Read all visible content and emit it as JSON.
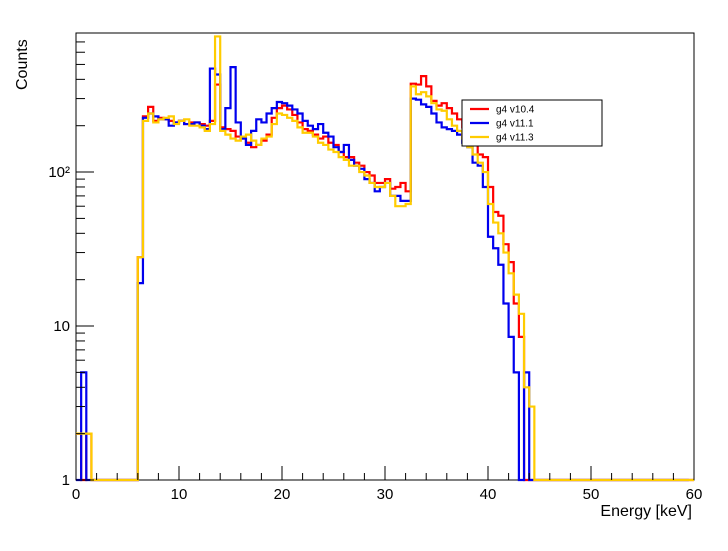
{
  "chart_data": {
    "type": "line",
    "style": "step-histogram",
    "xlabel": "Energy [keV]",
    "ylabel": "Counts",
    "xlim": [
      0,
      60
    ],
    "ylim": [
      1,
      800
    ],
    "yscale": "log",
    "grid": false,
    "legend_position": "top-right",
    "x_tick_labels": [
      "0",
      "10",
      "20",
      "30",
      "40",
      "50",
      "60"
    ],
    "y_tick_labels": [
      "1",
      "10",
      "10²"
    ],
    "bin_width": 0.5,
    "series": [
      {
        "name": "g4 v10.4",
        "color": "#ff0000",
        "values": [
          2,
          1,
          2,
          0,
          0,
          0,
          0,
          0,
          0,
          0,
          0,
          0,
          28,
          230,
          265,
          215,
          225,
          220,
          215,
          210,
          215,
          205,
          210,
          210,
          205,
          200,
          215,
          370,
          195,
          190,
          185,
          170,
          165,
          155,
          145,
          150,
          160,
          175,
          225,
          260,
          270,
          255,
          235,
          210,
          190,
          185,
          175,
          165,
          170,
          155,
          150,
          135,
          125,
          125,
          115,
          110,
          100,
          95,
          85,
          85,
          90,
          78,
          80,
          85,
          75,
          375,
          370,
          420,
          360,
          290,
          270,
          280,
          260,
          240,
          220,
          195,
          170,
          160,
          130,
          125,
          80,
          55,
          52,
          34,
          26,
          14,
          8.5,
          0.9,
          0.9,
          0,
          0,
          0,
          0,
          0,
          0,
          0,
          0,
          0,
          0,
          0,
          0,
          0,
          0,
          0,
          0,
          0,
          0,
          0,
          0,
          0,
          0,
          0,
          0,
          0,
          0,
          0,
          0,
          0,
          0,
          0
        ]
      },
      {
        "name": "g4 v11.1",
        "color": "#0000ee",
        "values": [
          1,
          5,
          1,
          0,
          0,
          0,
          0,
          0,
          0,
          0,
          0,
          0,
          19,
          225,
          240,
          230,
          220,
          220,
          200,
          210,
          215,
          205,
          205,
          210,
          200,
          190,
          470,
          430,
          190,
          260,
          480,
          210,
          165,
          150,
          185,
          220,
          210,
          240,
          260,
          285,
          280,
          270,
          255,
          240,
          215,
          200,
          190,
          205,
          180,
          170,
          145,
          135,
          150,
          120,
          110,
          105,
          90,
          85,
          75,
          80,
          85,
          70,
          70,
          65,
          65,
          300,
          295,
          275,
          265,
          240,
          210,
          195,
          190,
          185,
          175,
          155,
          145,
          115,
          110,
          80,
          38,
          32,
          25,
          14,
          8.5,
          5,
          1,
          5,
          0,
          0,
          0,
          0,
          0,
          0,
          0,
          0,
          0,
          0,
          0,
          0,
          0,
          0,
          0,
          0,
          0,
          0,
          0,
          0,
          0,
          0,
          0,
          0,
          0,
          0,
          0,
          0,
          0,
          0,
          0
        ]
      },
      {
        "name": "g4 v11.3",
        "color": "#ffcc00",
        "values": [
          2,
          2,
          2,
          0,
          0,
          0,
          0,
          0,
          0,
          0,
          0,
          0,
          28,
          215,
          240,
          210,
          220,
          225,
          230,
          205,
          215,
          220,
          200,
          200,
          195,
          185,
          205,
          760,
          185,
          175,
          165,
          160,
          170,
          175,
          160,
          150,
          165,
          170,
          205,
          240,
          235,
          225,
          215,
          195,
          180,
          180,
          170,
          155,
          150,
          140,
          135,
          125,
          120,
          110,
          110,
          100,
          95,
          85,
          80,
          80,
          85,
          70,
          60,
          60,
          62,
          360,
          320,
          330,
          310,
          280,
          255,
          250,
          220,
          200,
          185,
          165,
          145,
          130,
          115,
          100,
          62,
          47,
          40,
          30,
          22,
          16,
          12,
          4,
          3,
          0,
          0,
          0,
          0,
          0,
          0,
          0,
          0,
          0,
          0,
          0,
          0,
          0,
          0,
          0,
          0,
          0,
          0,
          0,
          0,
          0,
          0,
          0,
          0,
          0,
          0,
          0,
          0,
          0,
          0,
          0
        ]
      }
    ]
  }
}
